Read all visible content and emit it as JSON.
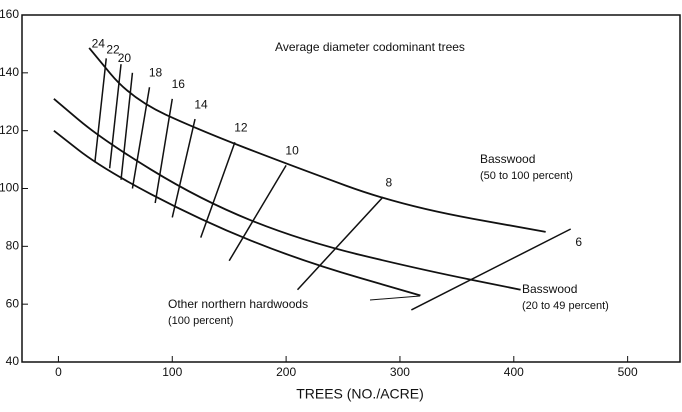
{
  "chart_data": {
    "type": "line",
    "annotation": "Average diameter codominant trees",
    "xlabel": "TREES (NO./ACRE)",
    "xlim": [
      -32,
      546
    ],
    "ylim": [
      40,
      160
    ],
    "xticks": [
      0,
      100,
      200,
      300,
      400,
      500
    ],
    "yticks": [
      40,
      60,
      80,
      100,
      120,
      140,
      160
    ],
    "series": [
      {
        "name": "Basswood",
        "note": "(50 to 100 percent)",
        "color": "#111",
        "x": [
          27,
          64,
          125,
          204,
          301,
          428
        ],
        "y": [
          148.6,
          131,
          120,
          108,
          94,
          85
        ]
      },
      {
        "name": "Basswood",
        "note": "(20 to 49 percent)",
        "color": "#111",
        "x": [
          -4,
          38,
          125,
          213,
          318,
          406
        ],
        "y": [
          131,
          117,
          96,
          82,
          72,
          65
        ]
      },
      {
        "name": "Other northern hardwoods",
        "note": "(100 percent)",
        "color": "#111",
        "x": [
          -4,
          38,
          125,
          213,
          318
        ],
        "y": [
          120,
          107,
          89,
          75,
          63
        ]
      }
    ],
    "diameter_lines": [
      {
        "label": "24",
        "x": [
          32,
          42
        ],
        "y": [
          109,
          145
        ]
      },
      {
        "label": "22",
        "x": [
          45,
          55
        ],
        "y": [
          107,
          143
        ]
      },
      {
        "label": "20",
        "x": [
          55,
          65
        ],
        "y": [
          103,
          140
        ]
      },
      {
        "label": "18",
        "x": [
          65,
          80
        ],
        "y": [
          100,
          135
        ]
      },
      {
        "label": "16",
        "x": [
          85,
          100
        ],
        "y": [
          95,
          131
        ]
      },
      {
        "label": "14",
        "x": [
          100,
          120
        ],
        "y": [
          90,
          124
        ]
      },
      {
        "label": "12",
        "x": [
          125,
          155
        ],
        "y": [
          83,
          116
        ]
      },
      {
        "label": "10",
        "x": [
          150,
          200
        ],
        "y": [
          75,
          108
        ]
      },
      {
        "label": "8",
        "x": [
          210,
          285
        ],
        "y": [
          65,
          97
        ]
      },
      {
        "label": "6",
        "x": [
          310,
          450
        ],
        "y": [
          58,
          86
        ]
      }
    ]
  }
}
